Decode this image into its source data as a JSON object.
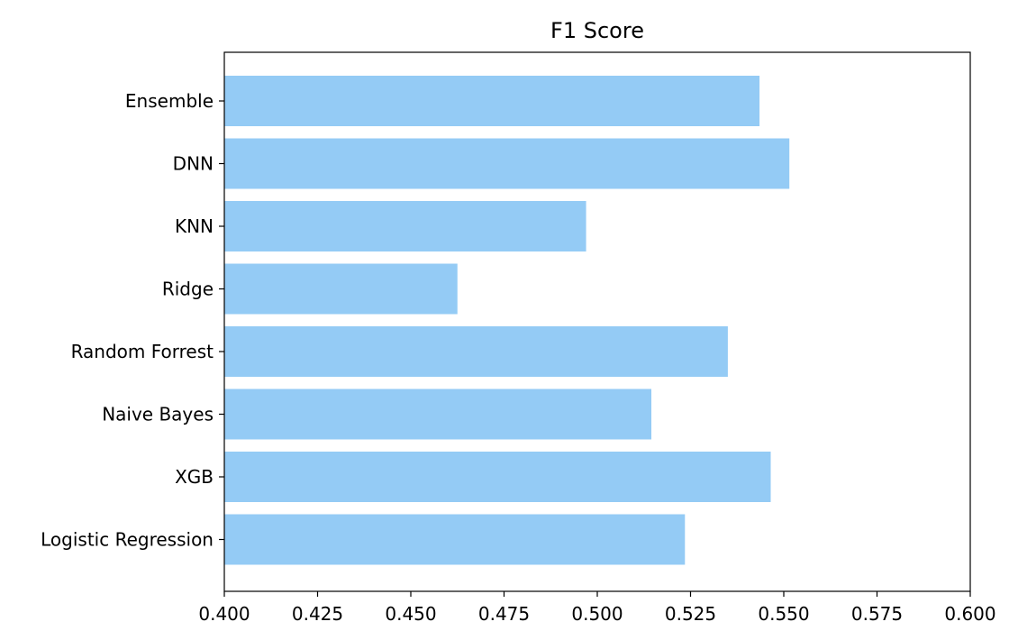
{
  "chart_data": {
    "type": "bar",
    "orientation": "horizontal",
    "title": "F1 Score",
    "xlabel": "",
    "ylabel": "",
    "categories": [
      "Ensemble",
      "DNN",
      "KNN",
      "Ridge",
      "Random Forrest",
      "Naive Bayes",
      "XGB",
      "Logistic Regression"
    ],
    "values": [
      0.5435,
      0.5515,
      0.497,
      0.4625,
      0.535,
      0.5145,
      0.5465,
      0.5235
    ],
    "xlim": [
      0.4,
      0.6
    ],
    "xticks": [
      0.4,
      0.425,
      0.45,
      0.475,
      0.5,
      0.525,
      0.55,
      0.575,
      0.6
    ],
    "xtick_labels": [
      "0.400",
      "0.425",
      "0.450",
      "0.475",
      "0.500",
      "0.525",
      "0.550",
      "0.575",
      "0.600"
    ],
    "grid": false,
    "bar_color": "#94cbf5"
  }
}
